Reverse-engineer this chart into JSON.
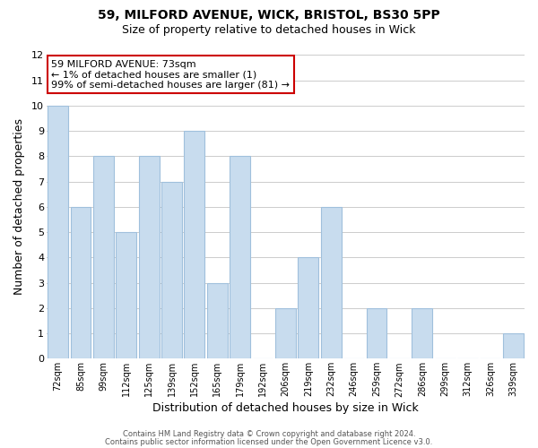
{
  "title1": "59, MILFORD AVENUE, WICK, BRISTOL, BS30 5PP",
  "title2": "Size of property relative to detached houses in Wick",
  "xlabel": "Distribution of detached houses by size in Wick",
  "ylabel": "Number of detached properties",
  "categories": [
    "72sqm",
    "85sqm",
    "99sqm",
    "112sqm",
    "125sqm",
    "139sqm",
    "152sqm",
    "165sqm",
    "179sqm",
    "192sqm",
    "206sqm",
    "219sqm",
    "232sqm",
    "246sqm",
    "259sqm",
    "272sqm",
    "286sqm",
    "299sqm",
    "312sqm",
    "326sqm",
    "339sqm"
  ],
  "values": [
    10,
    6,
    8,
    5,
    8,
    7,
    9,
    3,
    8,
    0,
    2,
    4,
    6,
    0,
    2,
    0,
    2,
    0,
    0,
    0,
    1
  ],
  "bar_color": "#c8dcee",
  "bar_edge_color": "#a0c0dc",
  "annotation_line1": "59 MILFORD AVENUE: 73sqm",
  "annotation_line2": "← 1% of detached houses are smaller (1)",
  "annotation_line3": "99% of semi-detached houses are larger (81) →",
  "annotation_box_edge_color": "#cc0000",
  "annotation_box_face_color": "#ffffff",
  "ylim": [
    0,
    12
  ],
  "yticks": [
    0,
    1,
    2,
    3,
    4,
    5,
    6,
    7,
    8,
    9,
    10,
    11,
    12
  ],
  "footer1": "Contains HM Land Registry data © Crown copyright and database right 2024.",
  "footer2": "Contains public sector information licensed under the Open Government Licence v3.0.",
  "grid_color": "#cccccc",
  "background_color": "#ffffff",
  "title1_fontsize": 10,
  "title2_fontsize": 9
}
